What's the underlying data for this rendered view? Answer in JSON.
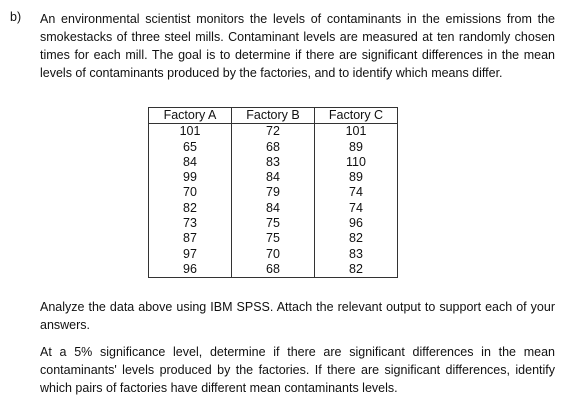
{
  "question": {
    "label": "b)",
    "intro": "An environmental scientist monitors the levels of contaminants in the emissions from the smokestacks of three steel mills. Contaminant levels are measured at ten randomly chosen times for each mill. The goal is to determine if there are significant differences in the mean levels of contaminants produced by the factories, and to identify which means differ."
  },
  "table": {
    "headers": [
      "Factory A",
      "Factory B",
      "Factory C"
    ],
    "rows": [
      [
        101,
        72,
        101
      ],
      [
        65,
        68,
        89
      ],
      [
        84,
        83,
        110
      ],
      [
        99,
        84,
        89
      ],
      [
        70,
        79,
        74
      ],
      [
        82,
        84,
        74
      ],
      [
        73,
        75,
        96
      ],
      [
        87,
        75,
        82
      ],
      [
        97,
        70,
        83
      ],
      [
        96,
        68,
        82
      ]
    ]
  },
  "instructions": [
    "Analyze the data above using IBM SPSS. Attach the relevant output to support each of your answers.",
    "At a 5% significance level, determine if there are significant differences in the mean contaminants' levels produced by the factories. If there are significant differences, identify which pairs of factories have different mean contaminants levels."
  ]
}
